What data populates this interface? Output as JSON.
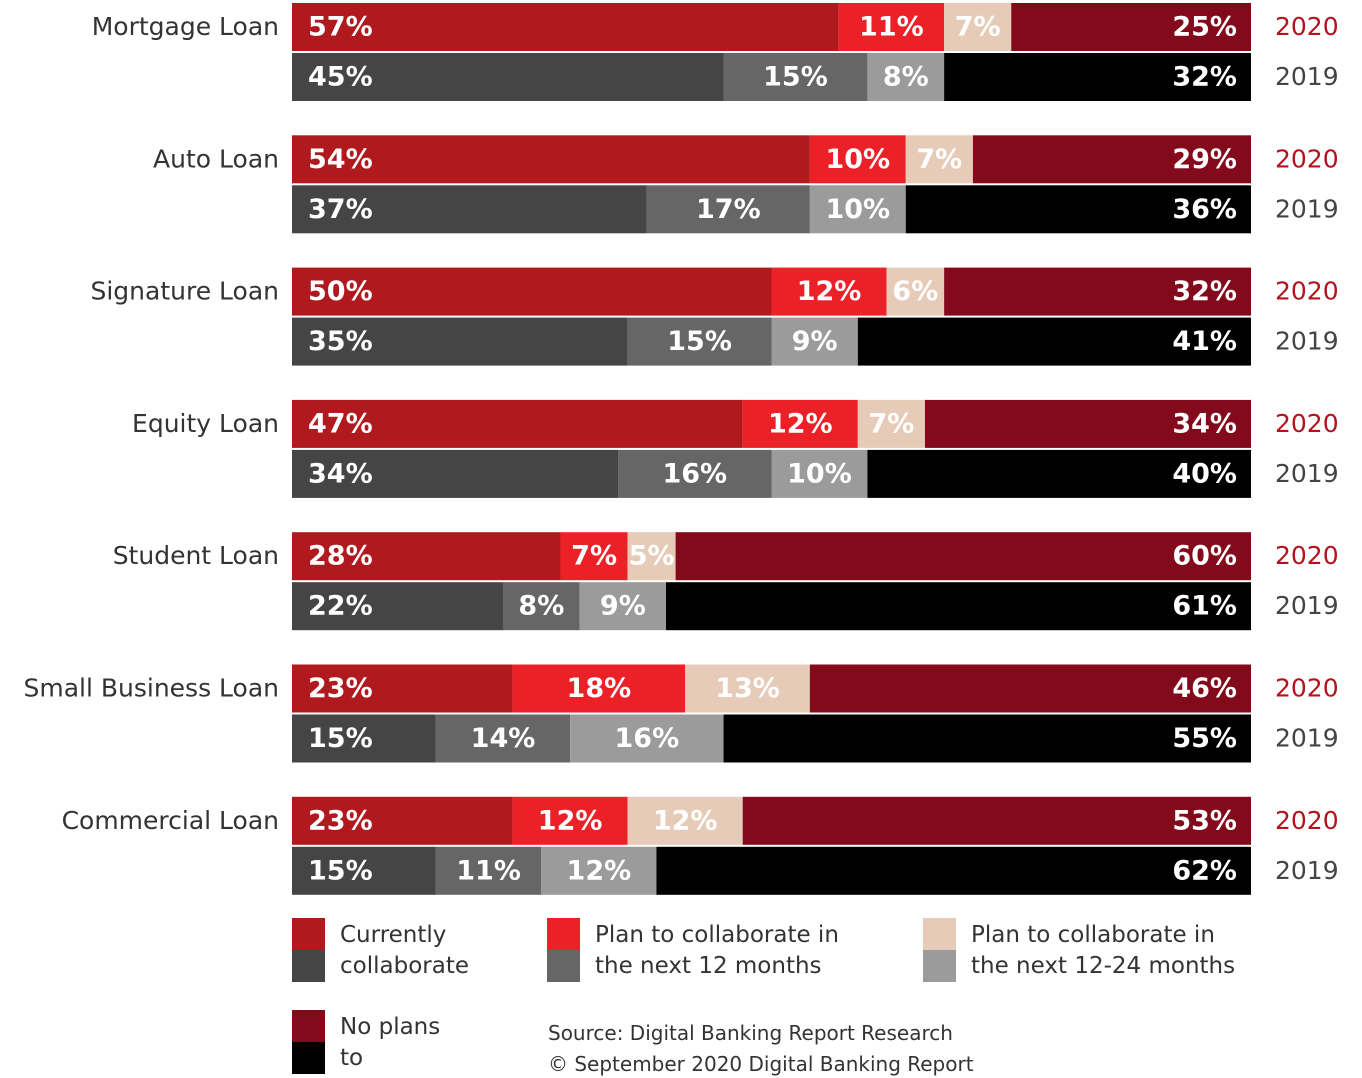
{
  "chart_data": {
    "type": "stacked_bar",
    "categories": [
      "Mortgage Loan",
      "Auto Loan",
      "Signature Loan",
      "Equity Loan",
      "Student Loan",
      "Small Business Loan",
      "Commercial Loan"
    ],
    "years": [
      "2020",
      "2019"
    ],
    "year_colors": [
      "#b5121b",
      "#444444"
    ],
    "xlim": [
      0,
      100
    ],
    "series": [
      {
        "name": "Currently collaborate",
        "colors": [
          "#b01a1e",
          "#454545"
        ],
        "values": [
          [
            57,
            45
          ],
          [
            54,
            37
          ],
          [
            50,
            35
          ],
          [
            47,
            34
          ],
          [
            28,
            22
          ],
          [
            23,
            15
          ],
          [
            23,
            15
          ]
        ],
        "value_labels": [
          [
            "57%",
            "45%"
          ],
          [
            "54%",
            "37%"
          ],
          [
            "50%",
            "35%"
          ],
          [
            "47%",
            "34%"
          ],
          [
            "28%",
            "22%"
          ],
          [
            "23%",
            "15%"
          ],
          [
            "23%",
            "15%"
          ]
        ]
      },
      {
        "name": "Plan to collaborate in the next 12 months",
        "colors": [
          "#ec2128",
          "#666666"
        ],
        "values": [
          [
            11,
            15
          ],
          [
            10,
            17
          ],
          [
            12,
            15
          ],
          [
            12,
            16
          ],
          [
            7,
            8
          ],
          [
            18,
            14
          ],
          [
            12,
            11
          ]
        ],
        "value_labels": [
          [
            "11%",
            "15%"
          ],
          [
            "10%",
            "17%"
          ],
          [
            "12%",
            "15%"
          ],
          [
            "12%",
            "16%"
          ],
          [
            "7%",
            "8%"
          ],
          [
            "18%",
            "14%"
          ],
          [
            "12%",
            "11%"
          ]
        ]
      },
      {
        "name": "Plan to collaborate in the next 12-24 months",
        "colors": [
          "#e6cbb8",
          "#9b9b9b"
        ],
        "values": [
          [
            7,
            8
          ],
          [
            7,
            10
          ],
          [
            6,
            9
          ],
          [
            7,
            10
          ],
          [
            5,
            9
          ],
          [
            13,
            16
          ],
          [
            12,
            12
          ]
        ],
        "value_labels": [
          [
            "7%",
            "8%"
          ],
          [
            "7%",
            "10%"
          ],
          [
            "6%",
            "9%"
          ],
          [
            "7%",
            "10%"
          ],
          [
            "5%",
            "9%"
          ],
          [
            "13%",
            "16%"
          ],
          [
            "12%",
            "12%"
          ]
        ]
      },
      {
        "name": "No plans to collaborate",
        "colors": [
          "#830a1b",
          "#000000"
        ],
        "values": [
          [
            25,
            32
          ],
          [
            29,
            36
          ],
          [
            32,
            41
          ],
          [
            34,
            40
          ],
          [
            60,
            61
          ],
          [
            46,
            55
          ],
          [
            53,
            62
          ]
        ],
        "value_labels": [
          [
            "25%",
            "32%"
          ],
          [
            "29%",
            "36%"
          ],
          [
            "32%",
            "41%"
          ],
          [
            "34%",
            "40%"
          ],
          [
            "60%",
            "61%"
          ],
          [
            "46%",
            "55%"
          ],
          [
            "53%",
            "62%"
          ]
        ]
      }
    ],
    "source": [
      "Source: Digital Banking Report Research",
      "© September 2020 Digital Banking Report"
    ]
  }
}
